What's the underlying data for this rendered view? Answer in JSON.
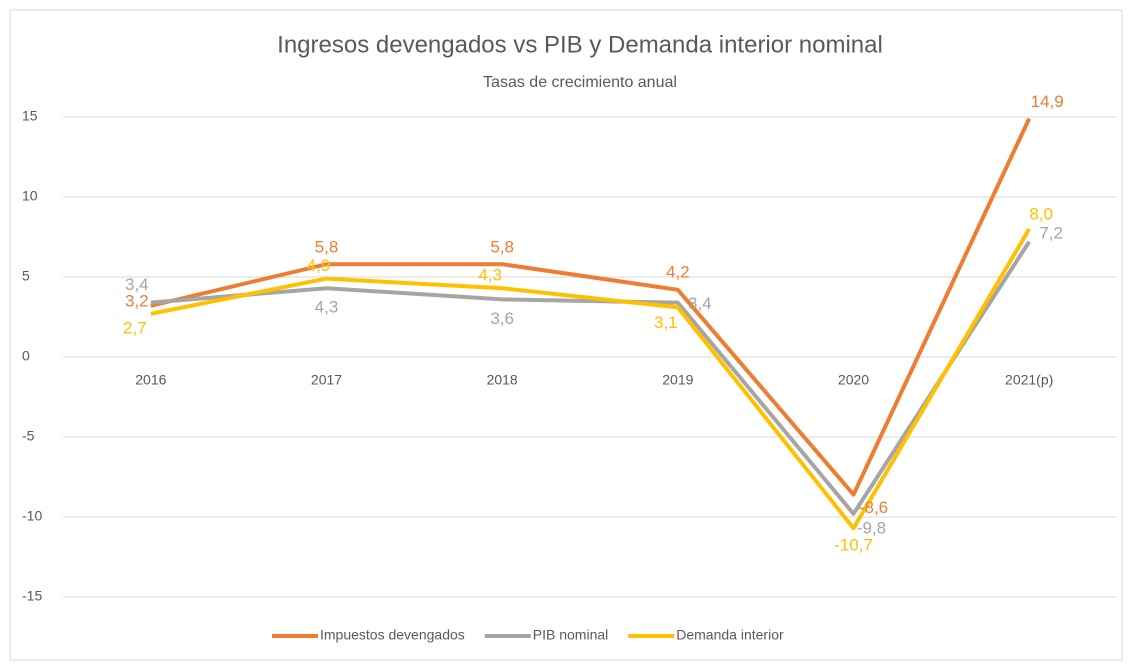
{
  "chart_data": {
    "type": "line",
    "title": "Ingresos devengados vs PIB y Demanda interior nominal",
    "subtitle": "Tasas de crecimiento anual",
    "categories": [
      "2016",
      "2017",
      "2018",
      "2019",
      "2020",
      "2021(p)"
    ],
    "series": [
      {
        "name": "Impuestos devengados",
        "color": "#ED7D31",
        "values": [
          3.2,
          5.8,
          5.8,
          4.2,
          -8.6,
          14.9
        ],
        "value_labels": [
          "3,2",
          "5,8",
          "5,8",
          "4,2",
          "-8,6",
          "14,9"
        ]
      },
      {
        "name": "PIB nominal",
        "color": "#A5A5A5",
        "values": [
          3.4,
          4.3,
          3.6,
          3.4,
          -9.8,
          7.2
        ],
        "value_labels": [
          "3,4",
          "4,3",
          "3,6",
          "3,4",
          "-9,8",
          "7,2"
        ]
      },
      {
        "name": "Demanda interior",
        "color": "#FFC000",
        "values": [
          2.7,
          4.9,
          4.3,
          3.1,
          -10.7,
          8.0
        ],
        "value_labels": [
          "2,7",
          "4,9",
          "4,3",
          "3,1",
          "-10,7",
          "8,0"
        ]
      }
    ],
    "ylim": [
      -15,
      15
    ],
    "yticks": [
      -15,
      -10,
      -5,
      0,
      5,
      10,
      15
    ],
    "grid": true,
    "legend": "bottom"
  }
}
